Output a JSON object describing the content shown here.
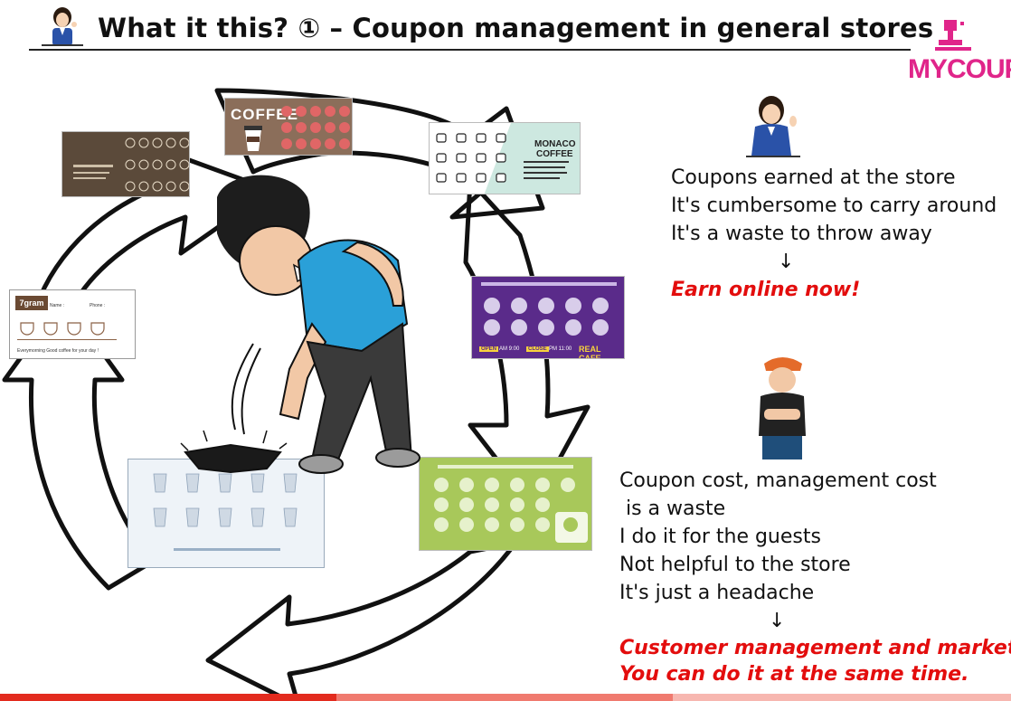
{
  "title": "What it this? ① – Coupon management in general stores",
  "logo": {
    "text": "MYCOUP",
    "color": "#e0258a"
  },
  "customer_block": {
    "lines": [
      "Coupons earned at the store",
      "It's cumbersome to carry around",
      "It's a waste to throw away"
    ],
    "arrow": "↓",
    "highlight": "Earn online now!"
  },
  "store_block": {
    "lines": [
      "Coupon cost, management cost",
      " is a waste",
      "I do it for the guests",
      "Not helpful to the store",
      "It's just a headache"
    ],
    "arrow": "↓",
    "highlight_lines": [
      "Customer management and marketing",
      "You can do it at the same time."
    ]
  },
  "cards": {
    "coffee_label": "COFFEE",
    "monaco": {
      "line1": "MONACO",
      "line2": "COFFEE"
    },
    "gram": {
      "logo": "7gram",
      "name_label": "Name :",
      "phone_label": "Phone :",
      "footer": "Everymorning Good coffee for your day !"
    },
    "purple": {
      "open": "OPEN",
      "open_time": "AM 9:00",
      "close": "CLOSE",
      "close_time": "PM 11:00",
      "brand": "REAL CAFE."
    }
  },
  "colors": {
    "accent_red": "#e30d0d",
    "brand_pink": "#e0258a",
    "purple_card": "#5a2b8a",
    "green_card": "#a8c85a"
  }
}
